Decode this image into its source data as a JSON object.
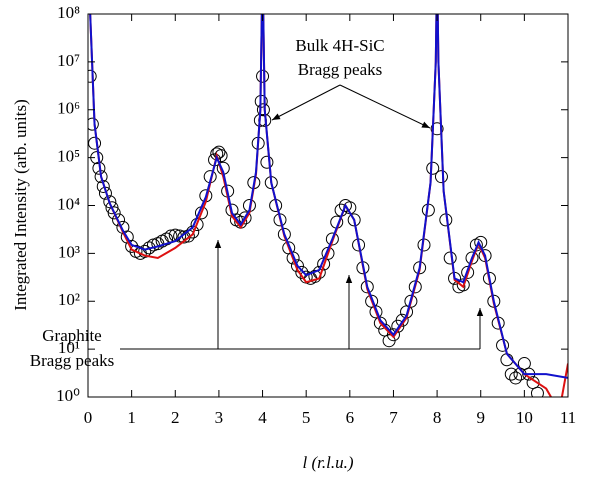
{
  "chart_data": {
    "type": "scatter",
    "xlabel": "l (r.l.u.)",
    "ylabel": "Integrated Intensity (arb. units)",
    "log_y": true,
    "xlim": [
      0,
      11
    ],
    "xticks": [
      0,
      1,
      2,
      3,
      4,
      5,
      6,
      7,
      8,
      9,
      10,
      11
    ],
    "ylim": [
      1,
      100000000
    ],
    "yticks": [
      {
        "value": 1,
        "label": "10⁰"
      },
      {
        "value": 10,
        "label": "10¹"
      },
      {
        "value": 100,
        "label": "10²"
      },
      {
        "value": 1000,
        "label": "10³"
      },
      {
        "value": 10000,
        "label": "10⁴"
      },
      {
        "value": 100000,
        "label": "10⁵"
      },
      {
        "value": 1000000,
        "label": "10⁶"
      },
      {
        "value": 10000000,
        "label": "10⁷"
      },
      {
        "value": 100000000,
        "label": "10⁸"
      }
    ],
    "annotations": [
      "Bulk 4H-SiC",
      "Bragg peaks",
      "Graphite",
      "Bragg peaks"
    ],
    "series": [
      {
        "kind": "markers",
        "color": "#000000",
        "x": [
          0.05,
          0.1,
          0.15,
          0.2,
          0.25,
          0.3,
          0.35,
          0.4,
          0.5,
          0.55,
          0.6,
          0.7,
          0.8,
          0.9,
          1.0,
          1.1,
          1.2,
          1.3,
          1.4,
          1.5,
          1.6,
          1.7,
          1.8,
          1.9,
          2.0,
          2.1,
          2.2,
          2.3,
          2.4,
          2.5,
          2.6,
          2.7,
          2.8,
          2.9,
          2.95,
          3.0,
          3.05,
          3.1,
          3.2,
          3.3,
          3.4,
          3.5,
          3.6,
          3.7,
          3.8,
          3.9,
          3.95,
          3.97,
          4.0,
          4.02,
          4.05,
          4.1,
          4.2,
          4.3,
          4.4,
          4.5,
          4.6,
          4.7,
          4.8,
          4.9,
          5.0,
          5.1,
          5.2,
          5.3,
          5.4,
          5.5,
          5.6,
          5.7,
          5.8,
          5.9,
          6.0,
          6.1,
          6.2,
          6.3,
          6.4,
          6.5,
          6.6,
          6.7,
          6.8,
          6.9,
          7.0,
          7.1,
          7.2,
          7.3,
          7.4,
          7.5,
          7.6,
          7.7,
          7.8,
          7.9,
          8.0,
          8.1,
          8.2,
          8.3,
          8.4,
          8.5,
          8.6,
          8.7,
          8.8,
          8.9,
          9.0,
          9.1,
          9.2,
          9.3,
          9.4,
          9.5,
          9.6,
          9.7,
          9.8,
          9.9,
          10.0,
          10.1,
          10.2,
          10.3
        ],
        "values": [
          5000000,
          500000,
          200000,
          100000,
          60000,
          40000,
          25000,
          18000,
          12000,
          9000,
          7000,
          5000,
          3500,
          2200,
          1400,
          1100,
          1000,
          1100,
          1300,
          1500,
          1600,
          1800,
          2000,
          2300,
          2400,
          2300,
          2200,
          2300,
          2800,
          4000,
          7000,
          16000,
          40000,
          90000,
          120000,
          130000,
          110000,
          60000,
          20000,
          8000,
          5000,
          4500,
          5500,
          10000,
          30000,
          200000,
          600000,
          1500000,
          5000000,
          1000000,
          600000,
          80000,
          30000,
          10000,
          5000,
          2500,
          1300,
          800,
          550,
          400,
          320,
          300,
          330,
          400,
          600,
          1000,
          2000,
          4500,
          8000,
          10000,
          9000,
          5000,
          1500,
          500,
          200,
          100,
          60,
          35,
          25,
          15,
          20,
          30,
          40,
          60,
          100,
          200,
          500,
          1500,
          8000,
          60000,
          400000,
          40000,
          5000,
          800,
          300,
          200,
          220,
          400,
          800,
          1500,
          1700,
          900,
          300,
          100,
          35,
          12,
          6,
          3,
          2.5,
          3,
          5,
          3,
          2,
          1.2
        ]
      },
      {
        "kind": "line",
        "color": "#dd1111",
        "x": [
          0.05,
          0.15,
          0.3,
          0.5,
          0.8,
          1.0,
          1.3,
          1.6,
          2.0,
          2.4,
          2.7,
          2.95,
          3.1,
          3.3,
          3.5,
          3.7,
          3.85,
          3.95,
          4.0,
          4.05,
          4.2,
          4.5,
          4.8,
          5.0,
          5.3,
          5.6,
          5.9,
          6.1,
          6.4,
          6.7,
          7.0,
          7.3,
          7.6,
          7.85,
          7.97,
          8.0,
          8.03,
          8.15,
          8.4,
          8.6,
          8.8,
          8.95,
          9.1,
          9.3,
          9.6,
          10.0,
          10.5,
          10.8,
          11.0
        ],
        "values": [
          100000000,
          500000,
          40000,
          11000,
          2800,
          1200,
          900,
          800,
          1300,
          2500,
          12000,
          110000,
          40000,
          6000,
          3500,
          7000,
          45000,
          1000000,
          1000000000,
          1000000,
          30000,
          2300,
          450,
          250,
          300,
          1800,
          10000,
          5000,
          180,
          35,
          18,
          45,
          450,
          30000,
          10000000,
          1000000000,
          10000000,
          20000,
          280,
          200,
          700,
          1600,
          800,
          90,
          8,
          3,
          1.5,
          0.5,
          5
        ]
      },
      {
        "kind": "line",
        "color": "#1111cc",
        "x": [
          0.05,
          0.15,
          0.3,
          0.5,
          0.8,
          1.0,
          1.3,
          1.6,
          2.0,
          2.4,
          2.7,
          2.95,
          3.1,
          3.3,
          3.5,
          3.7,
          3.85,
          3.95,
          4.0,
          4.05,
          4.2,
          4.5,
          4.8,
          5.0,
          5.3,
          5.6,
          5.9,
          6.1,
          6.4,
          6.7,
          7.0,
          7.3,
          7.6,
          7.85,
          7.97,
          8.0,
          8.03,
          8.15,
          8.4,
          8.6,
          8.8,
          8.95,
          9.1,
          9.3,
          9.6,
          10.0,
          10.5,
          11.0
        ],
        "values": [
          100000000,
          500000,
          40000,
          11000,
          3000,
          1500,
          1200,
          1400,
          1800,
          3500,
          15000,
          100000,
          50000,
          7000,
          4000,
          8000,
          50000,
          1000000,
          1000000000,
          1000000,
          30000,
          2500,
          550,
          350,
          450,
          2000,
          10000,
          5000,
          200,
          40,
          20,
          50,
          500,
          30000,
          10000000,
          1000000000,
          10000000,
          20000,
          300,
          250,
          800,
          1700,
          900,
          100,
          8,
          3,
          3,
          2.5
        ]
      }
    ]
  }
}
